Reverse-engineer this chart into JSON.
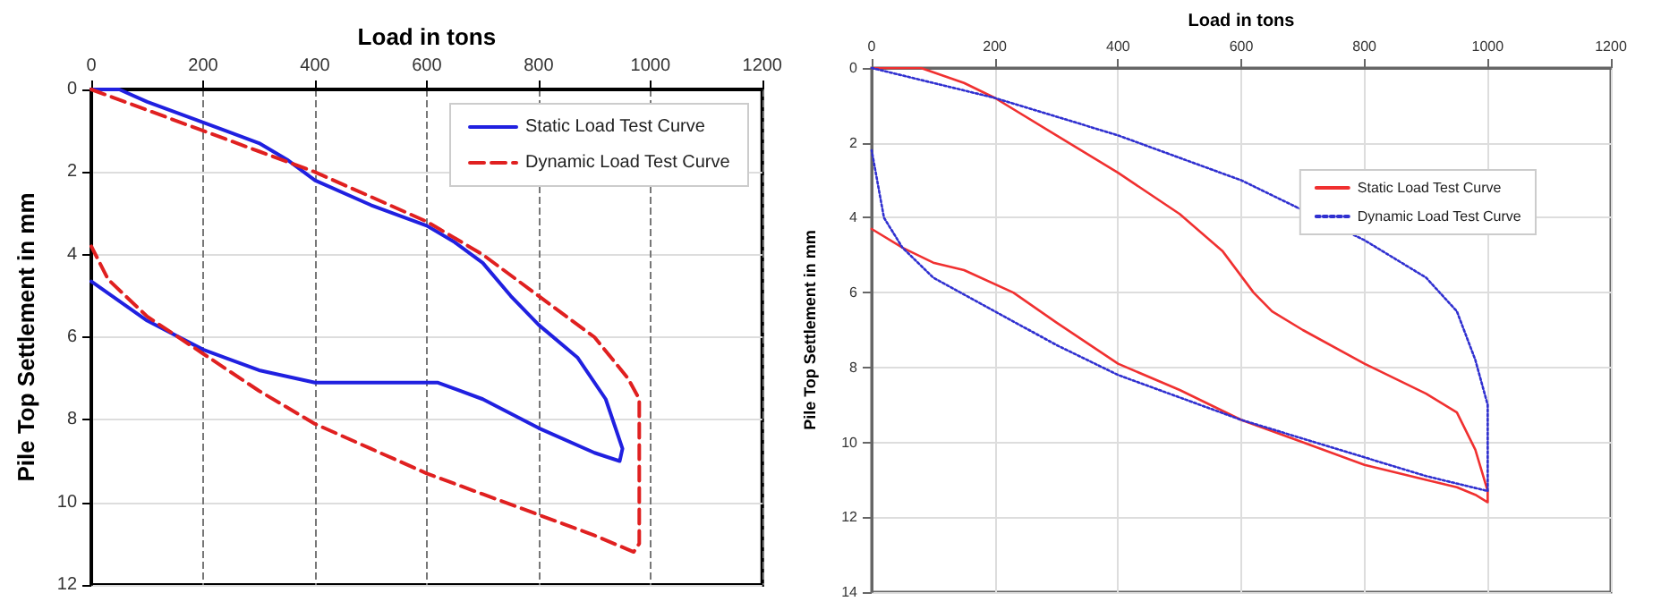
{
  "chart_data": [
    {
      "type": "line",
      "xlabel": "Load in tons",
      "ylabel": "Pile Top Settlement in mm",
      "xlim": [
        0,
        1200
      ],
      "xticks": [
        0,
        200,
        400,
        600,
        800,
        1000,
        1200
      ],
      "ylim": [
        12,
        0
      ],
      "yticks": [
        0,
        2,
        4,
        6,
        8,
        10,
        12
      ],
      "grid": true,
      "legend": "top right",
      "marker": "none",
      "series": [
        {
          "name": "Static Load Test Curve",
          "color": "#2020e0",
          "line_style": "solid",
          "x": [
            0,
            50,
            100,
            200,
            300,
            350,
            400,
            500,
            600,
            650,
            700,
            750,
            800,
            870,
            920,
            950,
            945,
            900,
            800,
            700,
            620,
            500,
            400,
            300,
            200,
            100,
            0
          ],
          "values": [
            0,
            0,
            0.3,
            0.8,
            1.3,
            1.7,
            2.2,
            2.8,
            3.3,
            3.7,
            4.2,
            5.0,
            5.7,
            6.5,
            7.5,
            8.7,
            9.0,
            8.8,
            8.2,
            7.5,
            7.1,
            7.1,
            7.1,
            6.8,
            6.3,
            5.6,
            4.65
          ]
        },
        {
          "name": "Dynamic Load Test Curve",
          "color": "#e02020",
          "line_style": "dashed",
          "x": [
            0,
            100,
            200,
            300,
            400,
            500,
            600,
            700,
            800,
            900,
            960,
            980,
            980,
            980,
            970,
            900,
            800,
            700,
            600,
            500,
            400,
            300,
            200,
            100,
            30,
            0
          ],
          "values": [
            0,
            0.5,
            1.0,
            1.5,
            2.0,
            2.6,
            3.2,
            4.0,
            5.0,
            6.0,
            7.0,
            7.5,
            9.0,
            11.0,
            11.2,
            10.8,
            10.3,
            9.8,
            9.3,
            8.7,
            8.1,
            7.3,
            6.4,
            5.5,
            4.6,
            3.8
          ]
        }
      ]
    },
    {
      "type": "line",
      "xlabel": "Load in tons",
      "ylabel": "Pile Top Settlement in mm",
      "xlim": [
        0,
        1200
      ],
      "xticks": [
        0,
        200,
        400,
        600,
        800,
        1000,
        1200
      ],
      "ylim": [
        14,
        0
      ],
      "yticks": [
        0,
        2,
        4,
        6,
        8,
        10,
        12,
        14
      ],
      "grid": true,
      "legend": "right",
      "marker": "none",
      "series": [
        {
          "name": "Static Load Test Curve",
          "color": "#f03030",
          "line_style": "solid",
          "x": [
            0,
            80,
            150,
            200,
            300,
            400,
            500,
            570,
            620,
            650,
            700,
            800,
            900,
            950,
            980,
            1000,
            1000,
            980,
            950,
            900,
            800,
            700,
            600,
            500,
            400,
            300,
            230,
            150,
            100,
            50,
            0
          ],
          "values": [
            0,
            0,
            0.4,
            0.8,
            1.8,
            2.8,
            3.9,
            4.9,
            6.0,
            6.5,
            7.0,
            7.9,
            8.7,
            9.2,
            10.2,
            11.3,
            11.6,
            11.4,
            11.2,
            11.0,
            10.6,
            10.0,
            9.4,
            8.6,
            7.9,
            6.8,
            6.0,
            5.4,
            5.2,
            4.8,
            4.3
          ]
        },
        {
          "name": "Dynamic Load Test Curve",
          "color": "#3030d0",
          "line_style": "dotted",
          "x": [
            0,
            100,
            200,
            300,
            400,
            500,
            600,
            700,
            800,
            900,
            950,
            980,
            1000,
            1000,
            900,
            800,
            700,
            600,
            500,
            400,
            300,
            200,
            100,
            50,
            20,
            0
          ],
          "values": [
            0,
            0.4,
            0.8,
            1.3,
            1.8,
            2.4,
            3.0,
            3.8,
            4.6,
            5.6,
            6.5,
            7.8,
            9.0,
            11.3,
            10.9,
            10.4,
            9.9,
            9.4,
            8.8,
            8.2,
            7.4,
            6.5,
            5.6,
            4.8,
            4.0,
            2.2
          ]
        }
      ]
    }
  ]
}
